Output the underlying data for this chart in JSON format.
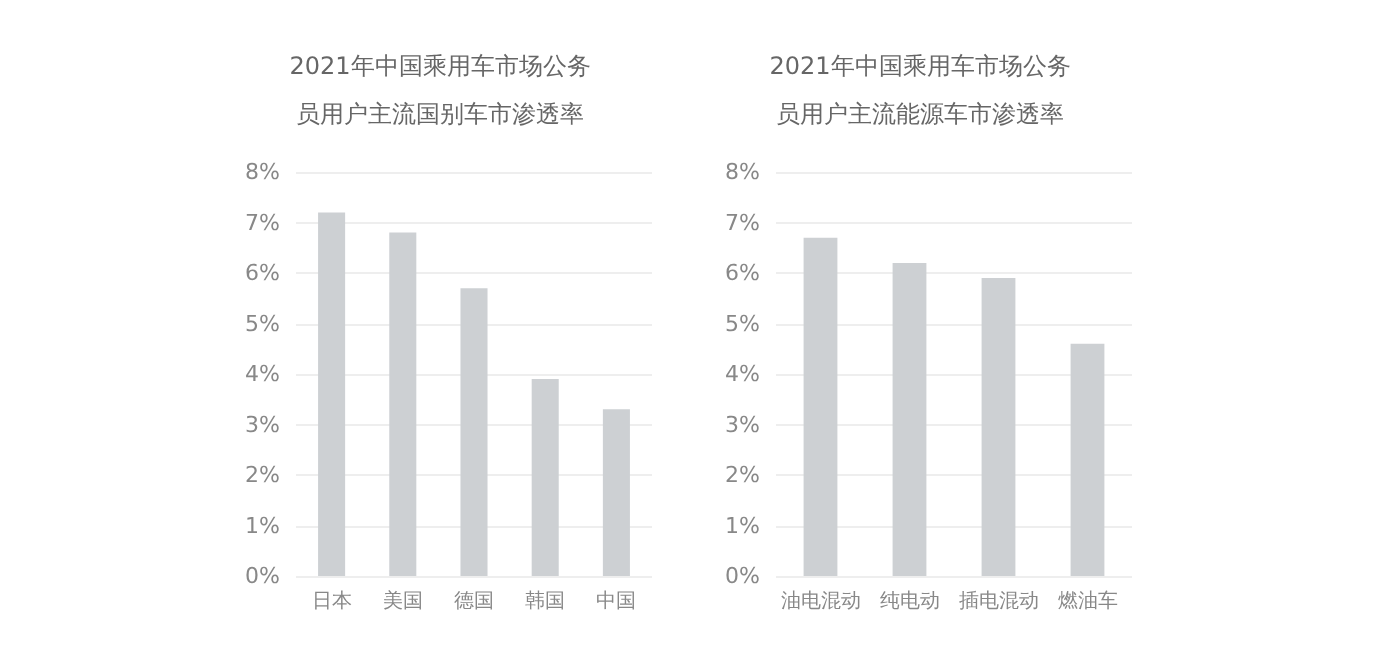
{
  "chart_data": [
    {
      "type": "bar",
      "title": "2021年中国乘用车市场公务员用户主流国别车市渗透率",
      "categories": [
        "日本",
        "美国",
        "德国",
        "韩国",
        "中国"
      ],
      "values": [
        7.2,
        6.8,
        5.7,
        3.9,
        3.3
      ],
      "color": "#cdd0d3",
      "ylim": [
        0,
        8
      ],
      "yticks": [
        {
          "value": 0,
          "label": "0%"
        },
        {
          "value": 1,
          "label": "1%"
        },
        {
          "value": 2,
          "label": "2%"
        },
        {
          "value": 3,
          "label": "3%"
        },
        {
          "value": 4,
          "label": "4%"
        },
        {
          "value": 5,
          "label": "5%"
        },
        {
          "value": 6,
          "label": "6%"
        },
        {
          "value": 7,
          "label": "7%"
        },
        {
          "value": 8,
          "label": "8%"
        }
      ],
      "grid": "y"
    },
    {
      "type": "bar",
      "title": "2021年中国乘用车市场公务员用户主流能源车市渗透率",
      "categories": [
        "油电混动",
        "纯电动",
        "插电混动",
        "燃油车"
      ],
      "values": [
        6.7,
        6.2,
        5.9,
        4.6
      ],
      "color": "#cdd0d3",
      "ylim": [
        0,
        8
      ],
      "yticks": [
        {
          "value": 0,
          "label": "0%"
        },
        {
          "value": 1,
          "label": "1%"
        },
        {
          "value": 2,
          "label": "2%"
        },
        {
          "value": 3,
          "label": "3%"
        },
        {
          "value": 4,
          "label": "4%"
        },
        {
          "value": 5,
          "label": "5%"
        },
        {
          "value": 6,
          "label": "6%"
        },
        {
          "value": 7,
          "label": "7%"
        },
        {
          "value": 8,
          "label": "8%"
        }
      ],
      "grid": "y"
    }
  ]
}
